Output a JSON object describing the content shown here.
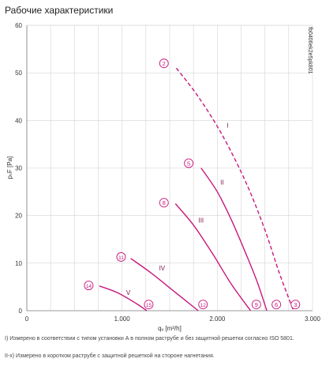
{
  "page": {
    "title": "Рабочие характеристики",
    "notes": [
      "I) Измерено в соответствии с типом установки А в полном раструбе и без защитной решетки согласно ISO 5801.",
      "II-x) Измерено в коротком раструбе с защитной решеткой на стороне нагнетания."
    ]
  },
  "chart_data": {
    "type": "line",
    "title": "Рабочие характеристики",
    "xlabel": "qᵥ [m³/h]",
    "ylabel": "pₛF [Pa]",
    "xlim": [
      0,
      3000
    ],
    "ylim": [
      0,
      60
    ],
    "x_ticks": [
      0,
      1000,
      2000,
      3000
    ],
    "x_tick_labels": [
      "0",
      "1.000",
      "2.000",
      "3.000"
    ],
    "y_ticks": [
      0,
      10,
      20,
      30,
      40,
      50,
      60
    ],
    "y_tick_labels": [
      "0",
      "10",
      "20",
      "30",
      "40",
      "50",
      "60"
    ],
    "grid": true,
    "curve_color": "#c8187d",
    "watermark": "fb0406ek2e5pk801",
    "series": [
      {
        "name": "I",
        "dashed": true,
        "label_at": [
          2110,
          38.5
        ],
        "x": [
          1570,
          1800,
          2050,
          2300,
          2500,
          2650,
          2800
        ],
        "y": [
          51,
          45,
          37,
          27,
          17,
          8,
          0
        ]
      },
      {
        "name": "II",
        "dashed": false,
        "label_at": [
          2050,
          26.5
        ],
        "x": [
          1830,
          2000,
          2150,
          2300,
          2420,
          2520
        ],
        "y": [
          30,
          25,
          19,
          12,
          6,
          0
        ]
      },
      {
        "name": "III",
        "dashed": false,
        "label_at": [
          1830,
          18.5
        ],
        "x": [
          1560,
          1750,
          1950,
          2150,
          2350
        ],
        "y": [
          22.5,
          18,
          12,
          5.5,
          0
        ]
      },
      {
        "name": "IV",
        "dashed": false,
        "label_at": [
          1420,
          8.5
        ],
        "x": [
          1090,
          1300,
          1550,
          1800
        ],
        "y": [
          11,
          8,
          4,
          0
        ]
      },
      {
        "name": "V",
        "dashed": false,
        "label_at": [
          1065,
          3.3
        ],
        "x": [
          760,
          950,
          1150,
          1260
        ],
        "y": [
          5.2,
          3.8,
          1.5,
          0
        ]
      }
    ],
    "markers": [
      {
        "label": "2",
        "x": 1440,
        "y": 52
      },
      {
        "label": "3",
        "x": 2820,
        "y": 1.3
      },
      {
        "label": "5",
        "x": 1700,
        "y": 31
      },
      {
        "label": "6",
        "x": 2620,
        "y": 1.3
      },
      {
        "label": "8",
        "x": 1440,
        "y": 22.7
      },
      {
        "label": "9",
        "x": 2410,
        "y": 1.3
      },
      {
        "label": "11",
        "x": 990,
        "y": 11.3
      },
      {
        "label": "12",
        "x": 1850,
        "y": 1.3
      },
      {
        "label": "14",
        "x": 650,
        "y": 5.3
      },
      {
        "label": "15",
        "x": 1280,
        "y": 1.3
      }
    ]
  }
}
